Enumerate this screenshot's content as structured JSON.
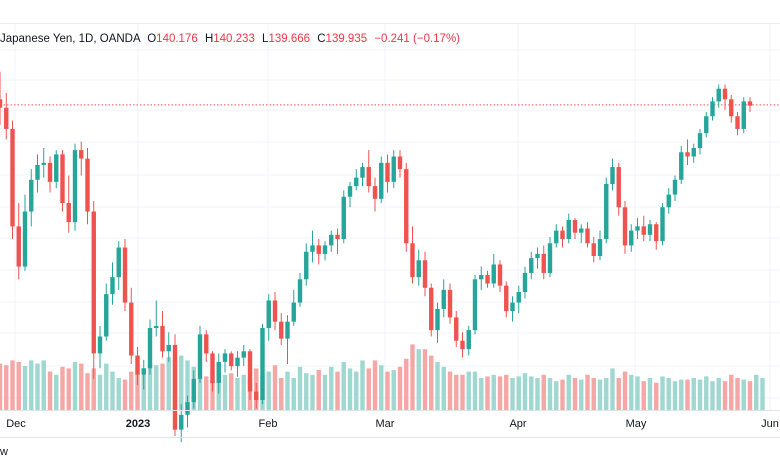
{
  "legend": {
    "symbol": "Japanese Yen, 1D, OANDA",
    "open_key": "O",
    "open": "140.176",
    "high_key": "H",
    "high": "140.233",
    "low_key": "L",
    "low": "139.666",
    "close_key": "C",
    "close": "139.935",
    "change": "−0.241 (−0.17%)"
  },
  "bottom_text": "w",
  "colors": {
    "up": "#26a69a",
    "down": "#ef5350",
    "up_volume": "#9fd8d0",
    "down_volume": "#f5a7a5",
    "price_line": "#ef5350",
    "grid": "#f0f3fa"
  },
  "chart_data": {
    "type": "candlestick",
    "xlabels": [
      "Dec",
      "2023",
      "Feb",
      "Mar",
      "Apr",
      "May",
      "Jun"
    ],
    "last_close": 139.935,
    "price_ylim": [
      126,
      143
    ],
    "candles": [
      [
        140.2,
        141.5,
        139.0,
        139.8
      ],
      [
        139.8,
        140.5,
        138.3,
        138.8
      ],
      [
        138.8,
        139.2,
        133.6,
        134.2
      ],
      [
        134.2,
        135.3,
        131.7,
        132.3
      ],
      [
        132.3,
        135.7,
        132.1,
        134.9
      ],
      [
        134.9,
        136.9,
        134.2,
        136.4
      ],
      [
        136.4,
        137.6,
        135.8,
        137.1
      ],
      [
        137.1,
        137.9,
        136.5,
        137.2
      ],
      [
        137.2,
        137.5,
        135.8,
        136.3
      ],
      [
        136.3,
        137.8,
        136.0,
        137.6
      ],
      [
        137.6,
        137.8,
        134.9,
        135.3
      ],
      [
        135.3,
        136.6,
        133.9,
        134.4
      ],
      [
        134.4,
        138.1,
        134.0,
        137.8
      ],
      [
        137.8,
        138.2,
        136.6,
        137.4
      ],
      [
        137.4,
        137.9,
        134.3,
        134.9
      ],
      [
        134.9,
        135.4,
        127.0,
        128.2
      ],
      [
        128.2,
        129.5,
        127.5,
        129.0
      ],
      [
        129.0,
        131.5,
        128.8,
        131.0
      ],
      [
        131.0,
        132.5,
        130.5,
        131.8
      ],
      [
        131.8,
        133.5,
        131.2,
        133.2
      ],
      [
        133.2,
        133.6,
        130.2,
        130.6
      ],
      [
        130.6,
        131.3,
        127.7,
        128.1
      ],
      [
        128.1,
        128.5,
        126.7,
        127.2
      ],
      [
        127.2,
        127.9,
        126.5,
        127.5
      ],
      [
        127.5,
        129.8,
        127.2,
        129.4
      ],
      [
        129.4,
        130.7,
        129.0,
        129.5
      ],
      [
        129.5,
        130.2,
        128.0,
        128.3
      ],
      [
        128.3,
        129.2,
        127.8,
        128.6
      ],
      [
        128.6,
        129.1,
        124.3,
        124.6
      ],
      [
        124.6,
        125.8,
        124.0,
        125.3
      ],
      [
        125.3,
        126.2,
        124.7,
        125.9
      ],
      [
        125.9,
        127.4,
        125.6,
        127.0
      ],
      [
        127.0,
        129.5,
        126.8,
        129.1
      ],
      [
        129.1,
        129.3,
        127.8,
        128.2
      ],
      [
        128.2,
        128.3,
        126.4,
        126.8
      ],
      [
        126.8,
        128.2,
        126.3,
        127.8
      ],
      [
        127.8,
        128.4,
        127.3,
        128.2
      ],
      [
        128.2,
        128.3,
        127.4,
        127.6
      ],
      [
        127.6,
        128.3,
        127.1,
        128.0
      ],
      [
        128.0,
        128.6,
        127.6,
        128.3
      ],
      [
        128.3,
        128.4,
        126.0,
        126.4
      ],
      [
        126.4,
        126.8,
        125.6,
        126.0
      ],
      [
        126.0,
        129.6,
        125.8,
        129.4
      ],
      [
        129.4,
        131.0,
        128.8,
        130.7
      ],
      [
        130.7,
        131.1,
        129.3,
        129.7
      ],
      [
        129.7,
        130.1,
        128.6,
        128.9
      ],
      [
        128.9,
        130.0,
        127.7,
        129.7
      ],
      [
        129.7,
        131.2,
        129.5,
        130.6
      ],
      [
        130.6,
        132.0,
        130.4,
        131.7
      ],
      [
        131.7,
        133.4,
        131.4,
        133.0
      ],
      [
        133.0,
        134.0,
        132.5,
        133.3
      ],
      [
        133.3,
        133.6,
        132.4,
        132.9
      ],
      [
        132.9,
        133.5,
        132.6,
        133.3
      ],
      [
        133.3,
        134.0,
        133.0,
        133.8
      ],
      [
        133.8,
        134.1,
        132.9,
        133.6
      ],
      [
        133.6,
        135.9,
        133.4,
        135.6
      ],
      [
        135.6,
        136.3,
        135.1,
        136.1
      ],
      [
        136.1,
        136.9,
        135.9,
        136.5
      ],
      [
        136.5,
        137.2,
        136.1,
        137.0
      ],
      [
        137.0,
        137.8,
        135.8,
        136.1
      ],
      [
        136.1,
        136.5,
        134.9,
        135.5
      ],
      [
        135.5,
        137.5,
        135.3,
        137.2
      ],
      [
        137.2,
        137.6,
        135.8,
        136.3
      ],
      [
        136.3,
        137.8,
        136.0,
        137.5
      ],
      [
        137.5,
        137.8,
        136.5,
        136.9
      ],
      [
        136.9,
        137.2,
        133.0,
        133.4
      ],
      [
        133.4,
        134.2,
        131.5,
        131.8
      ],
      [
        131.8,
        133.1,
        131.4,
        132.6
      ],
      [
        132.6,
        133.0,
        130.9,
        131.3
      ],
      [
        131.3,
        131.5,
        129.0,
        129.3
      ],
      [
        129.3,
        130.6,
        128.7,
        130.3
      ],
      [
        130.3,
        131.7,
        129.9,
        131.2
      ],
      [
        131.2,
        131.5,
        129.6,
        129.9
      ],
      [
        129.9,
        130.2,
        128.5,
        128.8
      ],
      [
        128.8,
        129.2,
        128.0,
        128.4
      ],
      [
        128.4,
        129.5,
        128.1,
        129.3
      ],
      [
        129.3,
        131.9,
        129.1,
        131.7
      ],
      [
        131.7,
        132.3,
        131.2,
        131.9
      ],
      [
        131.9,
        132.1,
        131.3,
        131.5
      ],
      [
        131.5,
        132.9,
        131.3,
        132.4
      ],
      [
        132.4,
        132.6,
        131.1,
        131.4
      ],
      [
        131.4,
        131.6,
        129.9,
        130.2
      ],
      [
        130.2,
        130.9,
        129.7,
        130.6
      ],
      [
        130.6,
        131.4,
        130.1,
        131.1
      ],
      [
        131.1,
        132.3,
        130.8,
        132.0
      ],
      [
        132.0,
        133.0,
        131.7,
        132.7
      ],
      [
        132.7,
        133.2,
        132.2,
        132.9
      ],
      [
        132.9,
        133.3,
        131.7,
        132.0
      ],
      [
        132.0,
        133.7,
        131.8,
        133.4
      ],
      [
        133.4,
        134.3,
        133.2,
        134.0
      ],
      [
        134.0,
        134.2,
        133.2,
        133.6
      ],
      [
        133.6,
        134.8,
        133.4,
        134.5
      ],
      [
        134.5,
        134.6,
        133.6,
        133.9
      ],
      [
        133.9,
        134.3,
        133.4,
        134.1
      ],
      [
        134.1,
        134.4,
        133.2,
        133.4
      ],
      [
        133.4,
        133.7,
        132.5,
        132.8
      ],
      [
        132.8,
        134.0,
        132.6,
        133.6
      ],
      [
        133.6,
        136.5,
        133.4,
        136.2
      ],
      [
        136.2,
        137.4,
        135.9,
        137.0
      ],
      [
        137.0,
        137.2,
        134.7,
        135.1
      ],
      [
        135.1,
        135.4,
        132.9,
        133.3
      ],
      [
        133.3,
        134.3,
        133.0,
        134.0
      ],
      [
        134.0,
        134.6,
        133.6,
        134.2
      ],
      [
        134.2,
        134.7,
        133.5,
        133.8
      ],
      [
        133.8,
        134.5,
        133.5,
        134.3
      ],
      [
        134.3,
        134.4,
        133.1,
        133.5
      ],
      [
        133.5,
        135.3,
        133.3,
        135.1
      ],
      [
        135.1,
        136.0,
        134.8,
        135.7
      ],
      [
        135.7,
        136.6,
        135.4,
        136.4
      ],
      [
        136.4,
        138.0,
        136.2,
        137.7
      ],
      [
        137.7,
        138.3,
        137.1,
        137.5
      ],
      [
        137.5,
        138.1,
        137.2,
        137.9
      ],
      [
        137.9,
        138.8,
        137.6,
        138.6
      ],
      [
        138.6,
        139.6,
        138.4,
        139.4
      ],
      [
        139.4,
        140.3,
        139.2,
        140.1
      ],
      [
        140.1,
        140.9,
        139.8,
        140.7
      ],
      [
        140.7,
        140.9,
        139.7,
        140.2
      ],
      [
        140.2,
        140.4,
        139.1,
        139.4
      ],
      [
        139.4,
        139.6,
        138.5,
        138.8
      ],
      [
        138.8,
        140.3,
        138.6,
        140.1
      ],
      [
        140.1,
        140.3,
        139.6,
        139.9
      ]
    ],
    "volumes": [
      58,
      56,
      62,
      60,
      55,
      62,
      58,
      62,
      48,
      44,
      54,
      52,
      60,
      58,
      46,
      52,
      44,
      58,
      48,
      40,
      38,
      48,
      52,
      46,
      56,
      56,
      58,
      66,
      62,
      68,
      62,
      54,
      40,
      42,
      50,
      48,
      44,
      46,
      40,
      44,
      40,
      52,
      44,
      48,
      56,
      40,
      48,
      40,
      54,
      46,
      44,
      50,
      44,
      54,
      48,
      60,
      52,
      48,
      62,
      52,
      62,
      56,
      48,
      50,
      54,
      64,
      82,
      76,
      76,
      68,
      60,
      54,
      48,
      44,
      44,
      48,
      48,
      40,
      42,
      44,
      42,
      44,
      40,
      42,
      46,
      42,
      40,
      44,
      40,
      36,
      38,
      44,
      40,
      38,
      44,
      40,
      38,
      40,
      52,
      40,
      48,
      44,
      42,
      36,
      40,
      34,
      42,
      40,
      36,
      38,
      38,
      40,
      38,
      42,
      36,
      40,
      36,
      44,
      40,
      38,
      36,
      44,
      40
    ]
  }
}
